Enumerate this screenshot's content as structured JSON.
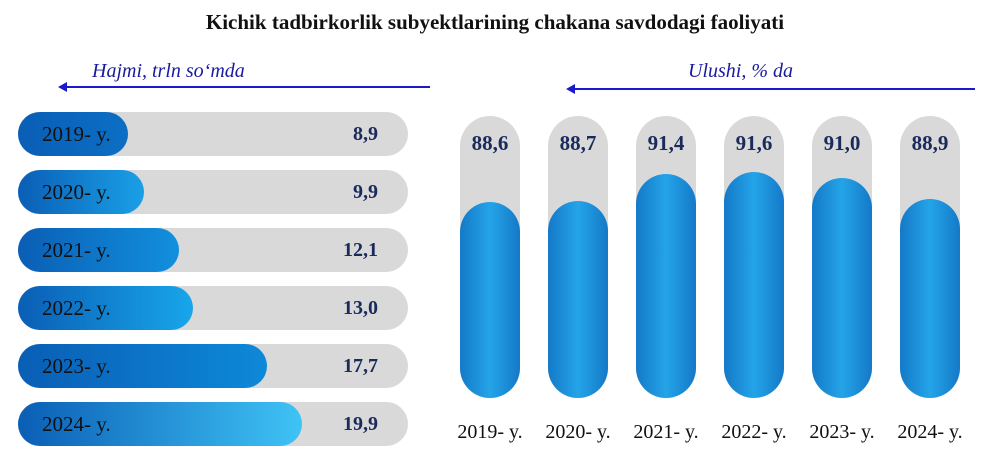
{
  "title": "Kichik tadbirkorlik subyektlarining chakana savdodagi faoliyati",
  "chart_data": [
    {
      "type": "bar",
      "orientation": "horizontal",
      "title": "Hajmi, trln so‘mda",
      "categories": [
        "2019- y.",
        "2020- y.",
        "2021- y.",
        "2022- y.",
        "2023- y.",
        "2024- y."
      ],
      "values": [
        8.9,
        9.9,
        12.1,
        13.0,
        17.7,
        19.9
      ],
      "labels": [
        "8,9",
        "9,9",
        "12,1",
        "13,0",
        "17,7",
        "19,9"
      ],
      "colors": [
        "#0b6fc4",
        "#1aa0e6",
        "#1290dd",
        "#18a6ea",
        "#0d89d8",
        "#3fc3f5"
      ]
    },
    {
      "type": "bar",
      "orientation": "vertical",
      "title": "Ulushi, % da",
      "categories": [
        "2019- y.",
        "2020- y.",
        "2021- y.",
        "2022- y.",
        "2023- y.",
        "2024- y."
      ],
      "values": [
        88.6,
        88.7,
        91.4,
        91.6,
        91.0,
        88.9
      ],
      "labels": [
        "88,6",
        "88,7",
        "91,4",
        "91,6",
        "91,0",
        "88,9"
      ],
      "ylim": [
        0,
        100
      ],
      "color": "#1e95dc"
    }
  ]
}
